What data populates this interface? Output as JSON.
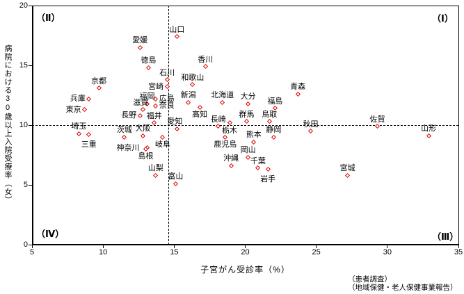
{
  "chart_data": {
    "type": "scatter",
    "title": "",
    "xlabel": "子宮がん受診率（%）",
    "ylabel": "病院における30歳以上入院受療率（女）",
    "xlim": [
      5,
      35
    ],
    "ylim": [
      0,
      20
    ],
    "xticks": [
      5,
      10,
      15,
      20,
      25,
      30,
      35
    ],
    "yticks": [
      0,
      5,
      10,
      15,
      20
    ],
    "grid": false,
    "legend": "none",
    "marker": {
      "shape": "diamond-outline",
      "color": "#dd0000"
    },
    "reference_lines": {
      "vertical_x": 14.6,
      "horizontal_y": 10,
      "style": "dashed"
    },
    "quadrant_labels": {
      "top_left": "（Ⅱ）",
      "top_right": "（Ⅰ）",
      "bottom_left": "（Ⅳ）",
      "bottom_right": "（Ⅲ）"
    },
    "points": [
      {
        "name": "山口",
        "x": 15.2,
        "y": 17.4,
        "label_pos": "above"
      },
      {
        "name": "愛媛",
        "x": 12.6,
        "y": 16.5,
        "label_pos": "above"
      },
      {
        "name": "徳島",
        "x": 13.2,
        "y": 14.8,
        "label_pos": "above"
      },
      {
        "name": "香川",
        "x": 17.2,
        "y": 14.9,
        "label_pos": "above"
      },
      {
        "name": "石川",
        "x": 14.5,
        "y": 13.8,
        "label_pos": "above"
      },
      {
        "name": "和歌山",
        "x": 16.3,
        "y": 13.4,
        "label_pos": "above"
      },
      {
        "name": "宮崎",
        "x": 14.5,
        "y": 13.2,
        "label_pos": "left"
      },
      {
        "name": "京都",
        "x": 9.7,
        "y": 13.1,
        "label_pos": "above"
      },
      {
        "name": "兵庫",
        "x": 9.0,
        "y": 12.2,
        "label_pos": "left"
      },
      {
        "name": "広島",
        "x": 13.7,
        "y": 12.2,
        "label_pos": "right"
      },
      {
        "name": "福岡",
        "x": 13.1,
        "y": 11.8,
        "label_pos": "above"
      },
      {
        "name": "新潟",
        "x": 16.0,
        "y": 11.9,
        "label_pos": "above"
      },
      {
        "name": "北海道",
        "x": 18.4,
        "y": 11.9,
        "label_pos": "above"
      },
      {
        "name": "大分",
        "x": 20.2,
        "y": 11.8,
        "label_pos": "above"
      },
      {
        "name": "青森",
        "x": 23.7,
        "y": 12.6,
        "label_pos": "above"
      },
      {
        "name": "福島",
        "x": 22.1,
        "y": 11.4,
        "label_pos": "above"
      },
      {
        "name": "奈良",
        "x": 13.7,
        "y": 11.6,
        "label_pos": "right"
      },
      {
        "name": "高知",
        "x": 16.8,
        "y": 11.5,
        "label_pos": "below"
      },
      {
        "name": "東京",
        "x": 8.7,
        "y": 11.3,
        "label_pos": "left"
      },
      {
        "name": "滋賀",
        "x": 12.8,
        "y": 11.3,
        "label_pos": "above",
        "dx": -3
      },
      {
        "name": "長野",
        "x": 12.6,
        "y": 10.8,
        "label_pos": "left"
      },
      {
        "name": "福井",
        "x": 13.6,
        "y": 10.2,
        "label_pos": "above"
      },
      {
        "name": "群馬",
        "x": 20.1,
        "y": 10.3,
        "label_pos": "above"
      },
      {
        "name": "鳥取",
        "x": 21.7,
        "y": 10.3,
        "label_pos": "above"
      },
      {
        "name": "長崎",
        "x": 18.1,
        "y": 9.9,
        "label_pos": "above"
      },
      {
        "name": "栃木",
        "x": 18.9,
        "y": 10.2,
        "label_pos": "below"
      },
      {
        "name": "愛知",
        "x": 15.2,
        "y": 9.7,
        "label_pos": "above",
        "dx": -3
      },
      {
        "name": "秋田",
        "x": 24.6,
        "y": 9.5,
        "label_pos": "above"
      },
      {
        "name": "佐賀",
        "x": 29.3,
        "y": 9.9,
        "label_pos": "above"
      },
      {
        "name": "山形",
        "x": 32.9,
        "y": 9.1,
        "label_pos": "above"
      },
      {
        "name": "埼玉",
        "x": 8.3,
        "y": 9.3,
        "label_pos": "above"
      },
      {
        "name": "三重",
        "x": 9.0,
        "y": 9.2,
        "label_pos": "below",
        "dy": 3
      },
      {
        "name": "茨城",
        "x": 11.5,
        "y": 9.0,
        "label_pos": "above"
      },
      {
        "name": "大阪",
        "x": 12.8,
        "y": 9.1,
        "label_pos": "above"
      },
      {
        "name": "岐阜",
        "x": 14.2,
        "y": 9.0,
        "label_pos": "below"
      },
      {
        "name": "静岡",
        "x": 22.0,
        "y": 9.0,
        "label_pos": "above"
      },
      {
        "name": "鹿児島",
        "x": 18.6,
        "y": 9.0,
        "label_pos": "below"
      },
      {
        "name": "熊本",
        "x": 20.6,
        "y": 8.6,
        "label_pos": "above"
      },
      {
        "name": "神奈川",
        "x": 13.1,
        "y": 8.1,
        "label_pos": "left",
        "dx": -6
      },
      {
        "name": "島根",
        "x": 13.0,
        "y": 8.0,
        "label_pos": "below"
      },
      {
        "name": "岡山",
        "x": 20.2,
        "y": 7.3,
        "label_pos": "above"
      },
      {
        "name": "沖縄",
        "x": 19.0,
        "y": 6.6,
        "label_pos": "above"
      },
      {
        "name": "千葉",
        "x": 20.9,
        "y": 6.4,
        "label_pos": "above"
      },
      {
        "name": "岩手",
        "x": 21.6,
        "y": 6.3,
        "label_pos": "below",
        "dy": 3
      },
      {
        "name": "山梨",
        "x": 13.7,
        "y": 5.8,
        "label_pos": "above"
      },
      {
        "name": "富山",
        "x": 15.1,
        "y": 5.1,
        "label_pos": "above"
      },
      {
        "name": "宮城",
        "x": 27.2,
        "y": 5.8,
        "label_pos": "above"
      }
    ]
  },
  "source_notes": [
    "（患者調査）",
    "（地域保健・老人保健事業報告）"
  ]
}
